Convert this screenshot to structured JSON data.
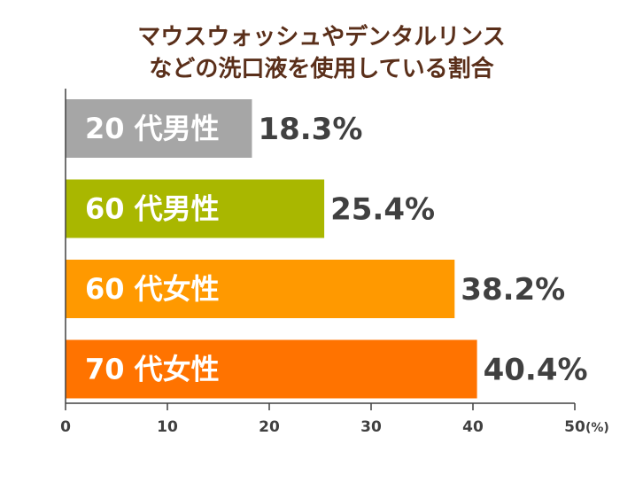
{
  "chart_data": {
    "type": "bar",
    "orientation": "horizontal",
    "title": [
      "マウスウォッシュやデンタルリンス",
      "などの洗口液を使用している割合"
    ],
    "categories": [
      "20 代男性",
      "60 代男性",
      "60 代女性",
      "70 代女性"
    ],
    "values": [
      18.3,
      25.4,
      38.2,
      40.4
    ],
    "value_labels": [
      "18.3%",
      "25.4%",
      "38.2%",
      "40.4%"
    ],
    "colors": [
      "#a6a6a6",
      "#a9b700",
      "#ff9900",
      "#ff7300"
    ],
    "xlim": [
      0,
      50
    ],
    "xticks": [
      0,
      10,
      20,
      30,
      40,
      50
    ],
    "xtick_labels": [
      "0",
      "10",
      "20",
      "30",
      "40",
      "50"
    ],
    "unit": "(%)",
    "grid": false,
    "legend": "none"
  }
}
